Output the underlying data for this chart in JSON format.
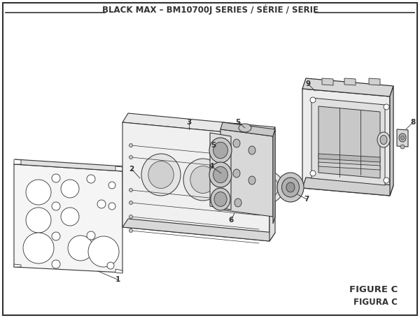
{
  "title": "BLACK MAX – BM10700J SERIES / SÉRIE / SERIE",
  "figure_label": "FIGURE C",
  "figura_label": "FIGURA C",
  "bg_color": "#ffffff",
  "line_color": "#333333",
  "title_fontsize": 8.5,
  "fig_label_fontsize": 9.5
}
